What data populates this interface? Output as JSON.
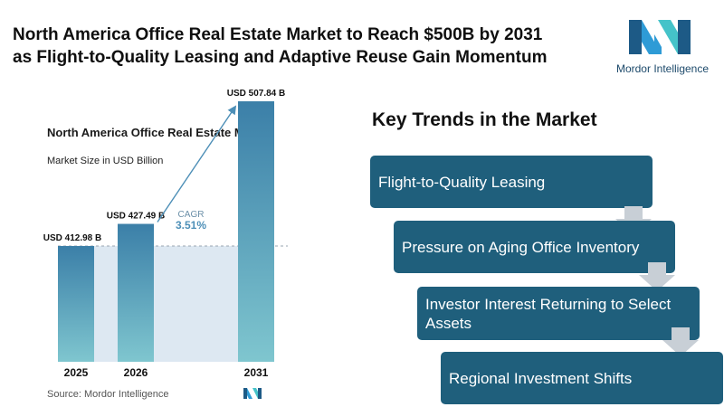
{
  "header": {
    "title_line1": "North America Office Real Estate Market to Reach $500B by 2031",
    "title_line2": "as Flight-to-Quality Leasing and Adaptive Reuse Gain Momentum"
  },
  "logo": {
    "text": "Mordor Intelligence",
    "icon": "mordor-intelligence-logo"
  },
  "chart_data": {
    "type": "bar",
    "title": "North America Office Real Estate Market",
    "subtitle": "Market Size in USD Billion",
    "categories": [
      "2025",
      "2026",
      "2031"
    ],
    "values": [
      412.98,
      427.49,
      507.84
    ],
    "value_labels": [
      "USD 412.98 B",
      "USD 427.49 B",
      "USD 507.84 B"
    ],
    "cagr_label": "CAGR",
    "cagr_value": "3.51%",
    "ylim": [
      0,
      520
    ],
    "grid": false,
    "colors": {
      "bar_top": "#3b7fa8",
      "bar_bottom": "#7fc6cf",
      "band": "#dde8f2",
      "arrow": "#4d8fb7"
    }
  },
  "source": {
    "label": "Source:",
    "name": "Mordor Intelligence"
  },
  "trends": {
    "title": "Key Trends in the Market",
    "items": [
      {
        "label": "Flight-to-Quality Leasing"
      },
      {
        "label": "Pressure on Aging Office Inventory"
      },
      {
        "label": "Investor Interest Returning to Select Assets"
      },
      {
        "label": "Regional Investment Shifts"
      }
    ],
    "colors": {
      "box": "#1f5f7c",
      "arrow": "#c8cfd6"
    }
  }
}
